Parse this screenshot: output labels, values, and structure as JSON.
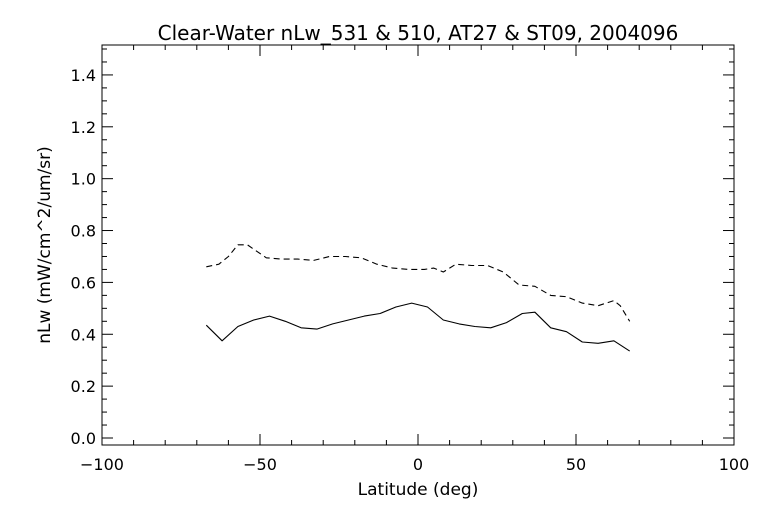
{
  "chart_data": {
    "type": "line",
    "title": "Clear-Water nLw_531 & 510, AT27 & ST09, 2004096",
    "xlabel": "Latitude (deg)",
    "ylabel": "nLw (mW/cm^2/um/sr)",
    "xlim": [
      -100,
      100
    ],
    "ylim": [
      0.0,
      1.5
    ],
    "xticks": [
      -100,
      -50,
      0,
      50,
      100
    ],
    "xtick_labels": [
      "−100",
      "−50",
      "0",
      "50",
      "100"
    ],
    "yticks": [
      0.0,
      0.2,
      0.4,
      0.6,
      0.8,
      1.0,
      1.2,
      1.4
    ],
    "ytick_labels": [
      "0.0",
      "0.2",
      "0.4",
      "0.6",
      "0.8",
      "1.0",
      "1.2",
      "1.4"
    ],
    "grid": false,
    "series": [
      {
        "style": "dashed",
        "color": "#000000",
        "x": [
          -67,
          -63,
          -60,
          -57,
          -54,
          -51,
          -48,
          -43,
          -38,
          -33,
          -28,
          -23,
          -18,
          -13,
          -8,
          -3,
          2,
          5,
          8,
          12,
          17,
          22,
          27,
          32,
          37,
          42,
          47,
          52,
          57,
          62,
          64,
          67
        ],
        "y": [
          0.66,
          0.67,
          0.7,
          0.745,
          0.745,
          0.72,
          0.695,
          0.69,
          0.69,
          0.685,
          0.7,
          0.7,
          0.695,
          0.67,
          0.655,
          0.65,
          0.65,
          0.655,
          0.64,
          0.67,
          0.665,
          0.665,
          0.64,
          0.59,
          0.585,
          0.55,
          0.545,
          0.52,
          0.51,
          0.53,
          0.51,
          0.45
        ]
      },
      {
        "style": "solid",
        "color": "#000000",
        "x": [
          -67,
          -62,
          -57,
          -52,
          -47,
          -42,
          -37,
          -32,
          -27,
          -22,
          -17,
          -12,
          -7,
          -2,
          3,
          8,
          13,
          18,
          23,
          28,
          33,
          37,
          42,
          47,
          52,
          57,
          62,
          67
        ],
        "y": [
          0.435,
          0.375,
          0.43,
          0.455,
          0.47,
          0.45,
          0.425,
          0.42,
          0.44,
          0.455,
          0.47,
          0.48,
          0.505,
          0.52,
          0.505,
          0.455,
          0.44,
          0.43,
          0.425,
          0.445,
          0.48,
          0.485,
          0.425,
          0.41,
          0.37,
          0.365,
          0.375,
          0.335
        ]
      }
    ]
  }
}
